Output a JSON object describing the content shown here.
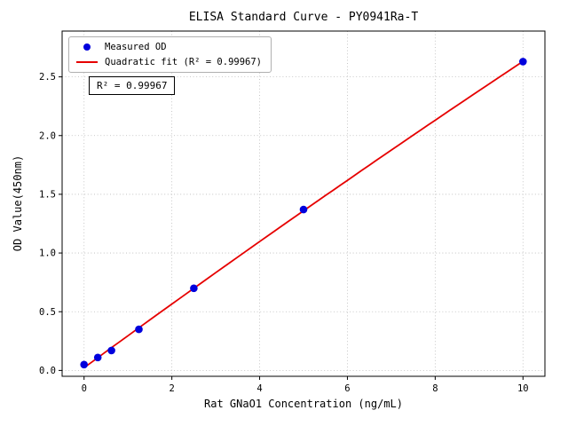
{
  "chart_data": {
    "type": "scatter",
    "title": "ELISA Standard Curve - PY0941Ra-T",
    "xlabel": "Rat GNaO1 Concentration (ng/mL)",
    "ylabel": "OD Value(450nm)",
    "xlim": [
      -0.5,
      10.5
    ],
    "ylim": [
      -0.05,
      2.89
    ],
    "xticks": [
      0,
      2,
      4,
      6,
      8,
      10
    ],
    "xticklabels": [
      "0",
      "2",
      "4",
      "6",
      "8",
      "10"
    ],
    "yticks": [
      0,
      0.5,
      1.0,
      1.5,
      2.0,
      2.5
    ],
    "yticklabels": [
      "0.0",
      "0.5",
      "1.0",
      "1.5",
      "2.0",
      "2.5"
    ],
    "grid": true,
    "grid_style": "dotted",
    "grid_color": "#b9b9b9",
    "legend_position": "upper-left",
    "annotation": "R² = 0.99967",
    "r_squared": 0.99967,
    "series": [
      {
        "name": "Measured OD",
        "type": "scatter",
        "marker": "circle",
        "color": "#0000dd",
        "x": [
          0,
          0.3125,
          0.625,
          1.25,
          2.5,
          5,
          10
        ],
        "y": [
          0.05,
          0.11,
          0.17,
          0.35,
          0.7,
          1.37,
          2.63
        ]
      },
      {
        "name": "Quadratic fit (R² = 0.99967)",
        "type": "line",
        "fit": "quadratic",
        "color": "#e60000"
      }
    ]
  }
}
